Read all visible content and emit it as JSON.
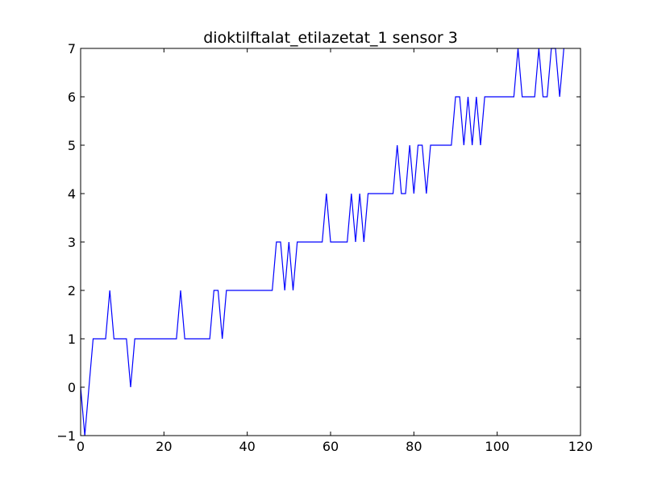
{
  "chart_data": {
    "type": "line",
    "title": "dioktilftalat_etilazetat_1 sensor 3",
    "xlabel": "",
    "ylabel": "",
    "xlim": [
      0,
      120
    ],
    "ylim": [
      -1,
      7
    ],
    "xticks": [
      0,
      20,
      40,
      60,
      80,
      100,
      120
    ],
    "yticks": [
      -1,
      0,
      1,
      2,
      3,
      4,
      5,
      6,
      7
    ],
    "xtick_labels": [
      "0",
      "20",
      "40",
      "60",
      "80",
      "100",
      "120"
    ],
    "ytick_labels": [
      "−1",
      "0",
      "1",
      "2",
      "3",
      "4",
      "5",
      "6",
      "7"
    ],
    "grid": false,
    "series": [
      {
        "color": "#0000ff",
        "x": [
          0,
          1,
          2,
          3,
          4,
          5,
          6,
          7,
          8,
          9,
          10,
          11,
          12,
          13,
          14,
          15,
          16,
          17,
          18,
          19,
          20,
          21,
          22,
          23,
          24,
          25,
          26,
          27,
          28,
          29,
          30,
          31,
          32,
          33,
          34,
          35,
          36,
          37,
          38,
          39,
          40,
          41,
          42,
          43,
          44,
          45,
          46,
          47,
          48,
          49,
          50,
          51,
          52,
          53,
          54,
          55,
          56,
          57,
          58,
          59,
          60,
          61,
          62,
          63,
          64,
          65,
          66,
          67,
          68,
          69,
          70,
          71,
          72,
          73,
          74,
          75,
          76,
          77,
          78,
          79,
          80,
          81,
          82,
          83,
          84,
          85,
          86,
          87,
          88,
          89,
          90,
          91,
          92,
          93,
          94,
          95,
          96,
          97,
          98,
          99,
          100,
          101,
          102,
          103,
          104,
          105,
          106,
          107,
          108,
          109,
          110,
          111,
          112,
          113,
          114,
          115,
          116
        ],
        "y": [
          0,
          -1,
          0,
          1,
          1,
          1,
          1,
          2,
          1,
          1,
          1,
          1,
          0,
          1,
          1,
          1,
          1,
          1,
          1,
          1,
          1,
          1,
          1,
          1,
          2,
          1,
          1,
          1,
          1,
          1,
          1,
          1,
          2,
          2,
          1,
          2,
          2,
          2,
          2,
          2,
          2,
          2,
          2,
          2,
          2,
          2,
          2,
          3,
          3,
          2,
          3,
          2,
          3,
          3,
          3,
          3,
          3,
          3,
          3,
          4,
          3,
          3,
          3,
          3,
          3,
          4,
          3,
          4,
          3,
          4,
          4,
          4,
          4,
          4,
          4,
          4,
          5,
          4,
          4,
          5,
          4,
          5,
          5,
          4,
          5,
          5,
          5,
          5,
          5,
          5,
          6,
          6,
          5,
          6,
          5,
          6,
          5,
          6,
          6,
          6,
          6,
          6,
          6,
          6,
          6,
          7,
          6,
          6,
          6,
          6,
          7,
          6,
          6,
          7,
          7,
          6,
          7
        ]
      }
    ]
  }
}
